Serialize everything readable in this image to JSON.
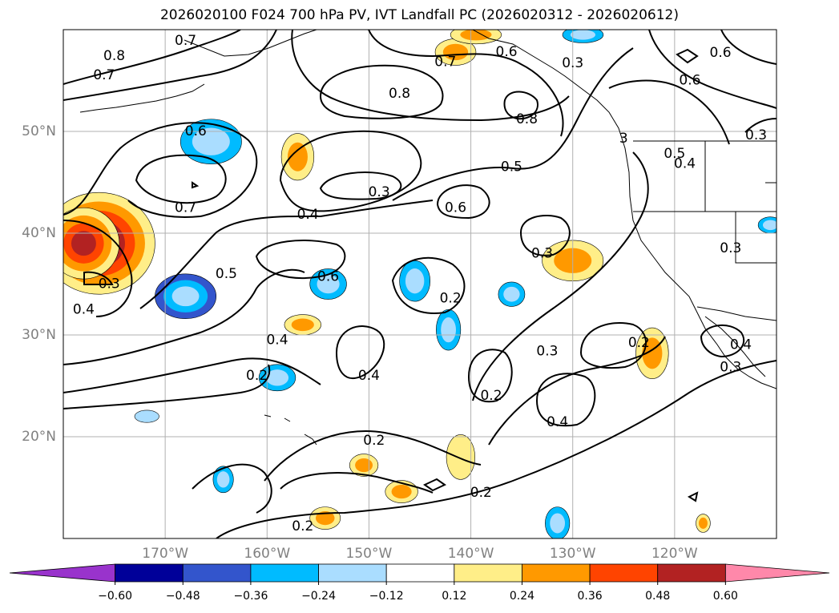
{
  "title": "2026020100 F024 700 hPa PV, IVT Landfall PC (2026020312 - 2026020612)",
  "chart_data": {
    "type": "heatmap",
    "title": "2026020100 F024 700 hPa PV, IVT Landfall PC (2026020312 - 2026020612)",
    "lat_range": [
      10,
      60
    ],
    "lon_range": [
      -180,
      -110
    ],
    "lat_ticks": [
      {
        "value": 20,
        "label": "20°N"
      },
      {
        "value": 30,
        "label": "30°N"
      },
      {
        "value": 40,
        "label": "40°N"
      },
      {
        "value": 50,
        "label": "50°N"
      }
    ],
    "lon_ticks": [
      {
        "value": -170,
        "label": "170°W"
      },
      {
        "value": -160,
        "label": "160°W"
      },
      {
        "value": -150,
        "label": "150°W"
      },
      {
        "value": -140,
        "label": "140°W"
      },
      {
        "value": -130,
        "label": "130°W"
      },
      {
        "value": -120,
        "label": "120°W"
      }
    ],
    "grid": true,
    "colorbar": {
      "levels": [
        -0.6,
        -0.48,
        -0.36,
        -0.24,
        -0.12,
        0.12,
        0.24,
        0.36,
        0.48,
        0.6
      ],
      "tick_labels": [
        "−0.60",
        "−0.48",
        "−0.36",
        "−0.24",
        "−0.12",
        "0.12",
        "0.24",
        "0.36",
        "0.48",
        "0.60"
      ],
      "colors": [
        "#9933cc",
        "#000099",
        "#3355cc",
        "#00bbff",
        "#aaddff",
        "#ffffff",
        "#ffee88",
        "#ff9900",
        "#ff4400",
        "#b22222",
        "#ff88aa"
      ],
      "extend": "both"
    },
    "contour_labels": [
      {
        "lat": 58.9,
        "lon": -168.0,
        "text": "0.7"
      },
      {
        "lat": 57.4,
        "lon": -175.0,
        "text": "0.8"
      },
      {
        "lat": 55.5,
        "lon": -176.0,
        "text": "0.7"
      },
      {
        "lat": 50.0,
        "lon": -167.0,
        "text": "0.6"
      },
      {
        "lat": 42.5,
        "lon": -168.0,
        "text": "0.7"
      },
      {
        "lat": 36.0,
        "lon": -164.0,
        "text": "0.5"
      },
      {
        "lat": 35.0,
        "lon": -175.5,
        "text": "0.3"
      },
      {
        "lat": 32.5,
        "lon": -178.0,
        "text": "0.4"
      },
      {
        "lat": 41.8,
        "lon": -156.0,
        "text": "0.4"
      },
      {
        "lat": 35.7,
        "lon": -154.0,
        "text": "0.6"
      },
      {
        "lat": 29.5,
        "lon": -159.0,
        "text": "0.4"
      },
      {
        "lat": 26.0,
        "lon": -161.0,
        "text": "0.2"
      },
      {
        "lat": 26.0,
        "lon": -150.0,
        "text": "0.4"
      },
      {
        "lat": 44.0,
        "lon": -149.0,
        "text": "0.3"
      },
      {
        "lat": 53.7,
        "lon": -147.0,
        "text": "0.8"
      },
      {
        "lat": 56.8,
        "lon": -142.5,
        "text": "0.7"
      },
      {
        "lat": 57.8,
        "lon": -136.5,
        "text": "0.6"
      },
      {
        "lat": 51.2,
        "lon": -134.5,
        "text": "0.8"
      },
      {
        "lat": 56.7,
        "lon": -130.0,
        "text": "0.3"
      },
      {
        "lat": 46.5,
        "lon": -136.0,
        "text": "0.5"
      },
      {
        "lat": 42.5,
        "lon": -141.5,
        "text": "0.6"
      },
      {
        "lat": 38.0,
        "lon": -133.0,
        "text": "0.3"
      },
      {
        "lat": 33.6,
        "lon": -142.0,
        "text": "0.2"
      },
      {
        "lat": 28.4,
        "lon": -132.5,
        "text": "0.3"
      },
      {
        "lat": 24.0,
        "lon": -138.0,
        "text": "0.2"
      },
      {
        "lat": 21.4,
        "lon": -131.5,
        "text": "0.4"
      },
      {
        "lat": 19.6,
        "lon": -149.5,
        "text": "0.2"
      },
      {
        "lat": 14.5,
        "lon": -139.0,
        "text": "0.2"
      },
      {
        "lat": 11.2,
        "lon": -156.5,
        "text": "0.2"
      },
      {
        "lat": 29.2,
        "lon": -123.5,
        "text": "0.2"
      },
      {
        "lat": 57.7,
        "lon": -115.5,
        "text": "0.6"
      },
      {
        "lat": 55.0,
        "lon": -118.5,
        "text": "0.6"
      },
      {
        "lat": 49.3,
        "lon": -125.0,
        "text": "3"
      },
      {
        "lat": 47.8,
        "lon": -120.0,
        "text": "0.5"
      },
      {
        "lat": 49.6,
        "lon": -112.0,
        "text": "0.3"
      },
      {
        "lat": 46.8,
        "lon": -119.0,
        "text": "0.4"
      },
      {
        "lat": 38.5,
        "lon": -114.5,
        "text": "0.3"
      },
      {
        "lat": 29.0,
        "lon": -113.5,
        "text": "0.4"
      },
      {
        "lat": 26.8,
        "lon": -114.5,
        "text": "0.3"
      }
    ],
    "shaded_regions": [
      {
        "lat": 39.0,
        "lon": -176.5,
        "rlat": 5.0,
        "rlon": 5.5,
        "value": 0.6
      },
      {
        "lat": 39.0,
        "lon": -178.0,
        "rlat": 3.5,
        "rlon": 3.5,
        "value": 0.5
      },
      {
        "lat": 33.8,
        "lon": -168.0,
        "rlat": 2.2,
        "rlon": 3.0,
        "value": -0.4
      },
      {
        "lat": 49.0,
        "lon": -165.5,
        "rlat": 2.2,
        "rlon": 3.0,
        "value": -0.3
      },
      {
        "lat": 47.5,
        "lon": -157.0,
        "rlat": 2.3,
        "rlon": 1.6,
        "value": 0.35
      },
      {
        "lat": 35.0,
        "lon": -154.0,
        "rlat": 1.5,
        "rlon": 1.8,
        "value": -0.3
      },
      {
        "lat": 31.0,
        "lon": -156.5,
        "rlat": 1.0,
        "rlon": 1.8,
        "value": 0.3
      },
      {
        "lat": 25.8,
        "lon": -159.0,
        "rlat": 1.3,
        "rlon": 1.8,
        "value": -0.3
      },
      {
        "lat": 35.3,
        "lon": -145.5,
        "rlat": 2.0,
        "rlon": 1.5,
        "value": -0.3
      },
      {
        "lat": 30.5,
        "lon": -142.2,
        "rlat": 2.0,
        "rlon": 1.2,
        "value": -0.3
      },
      {
        "lat": 34.0,
        "lon": -136.0,
        "rlat": 1.2,
        "rlon": 1.3,
        "value": -0.25
      },
      {
        "lat": 37.3,
        "lon": -130.0,
        "rlat": 2.0,
        "rlon": 3.0,
        "value": 0.35
      },
      {
        "lat": 28.2,
        "lon": -122.2,
        "rlat": 2.5,
        "rlon": 1.6,
        "value": 0.35
      },
      {
        "lat": 57.8,
        "lon": -141.5,
        "rlat": 1.3,
        "rlon": 2.0,
        "value": 0.35
      },
      {
        "lat": 59.5,
        "lon": -139.5,
        "rlat": 0.9,
        "rlon": 2.5,
        "value": 0.35
      },
      {
        "lat": 59.5,
        "lon": -129.0,
        "rlat": 0.8,
        "rlon": 2.0,
        "value": -0.3
      },
      {
        "lat": 17.2,
        "lon": -150.5,
        "rlat": 1.1,
        "rlon": 1.4,
        "value": 0.3
      },
      {
        "lat": 18.0,
        "lon": -141.0,
        "rlat": 2.2,
        "rlon": 1.4,
        "value": 0.2
      },
      {
        "lat": 14.6,
        "lon": -146.8,
        "rlat": 1.1,
        "rlon": 1.6,
        "value": 0.35
      },
      {
        "lat": 12.0,
        "lon": -154.3,
        "rlat": 1.1,
        "rlon": 1.5,
        "value": 0.3
      },
      {
        "lat": 15.8,
        "lon": -164.3,
        "rlat": 1.3,
        "rlon": 1.0,
        "value": -0.3
      },
      {
        "lat": 11.5,
        "lon": -131.5,
        "rlat": 1.6,
        "rlon": 1.2,
        "value": -0.3
      },
      {
        "lat": 22.0,
        "lon": -171.8,
        "rlat": 0.6,
        "rlon": 1.2,
        "value": -0.2
      },
      {
        "lat": 11.5,
        "lon": -117.2,
        "rlat": 0.9,
        "rlon": 0.7,
        "value": 0.3
      },
      {
        "lat": 40.8,
        "lon": -110.6,
        "rlat": 0.8,
        "rlon": 1.2,
        "value": -0.25
      }
    ]
  }
}
